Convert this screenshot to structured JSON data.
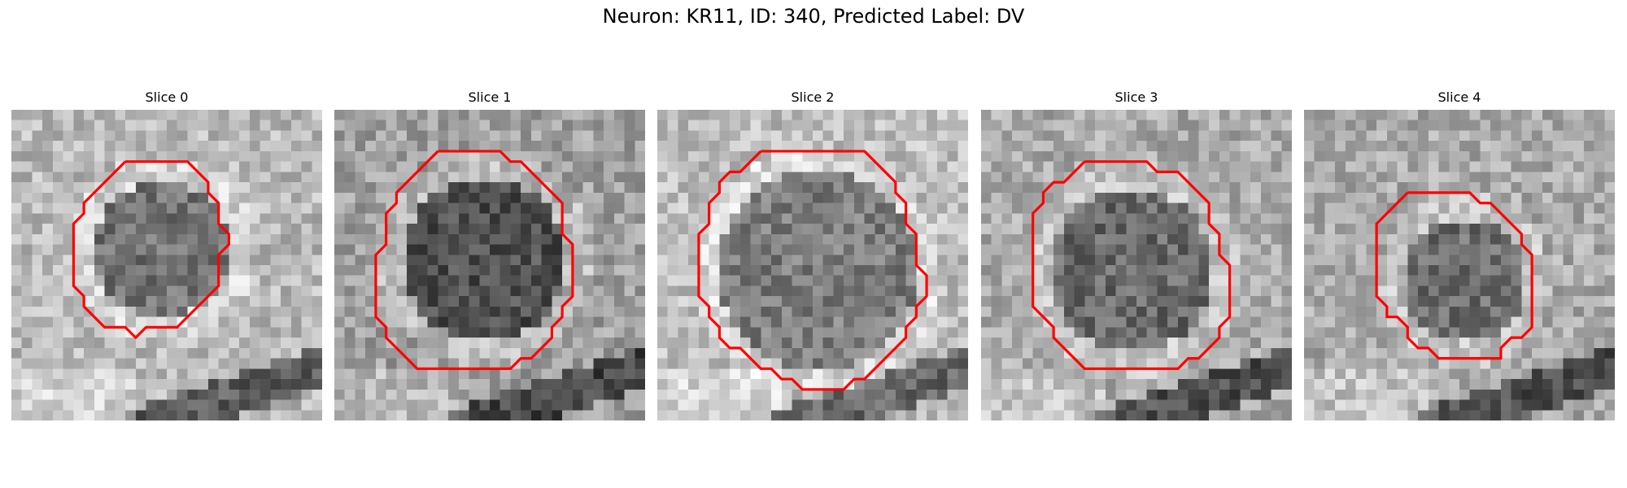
{
  "figure": {
    "title": "Neuron: KR11, ID: 340, Predicted Label: DV"
  },
  "colors": {
    "contour": "#ff0000",
    "background": "#ffffff"
  },
  "panels": [
    {
      "title": "Slice 0"
    },
    {
      "title": "Slice 1"
    },
    {
      "title": "Slice 2"
    },
    {
      "title": "Slice 3"
    },
    {
      "title": "Slice 4"
    }
  ]
}
